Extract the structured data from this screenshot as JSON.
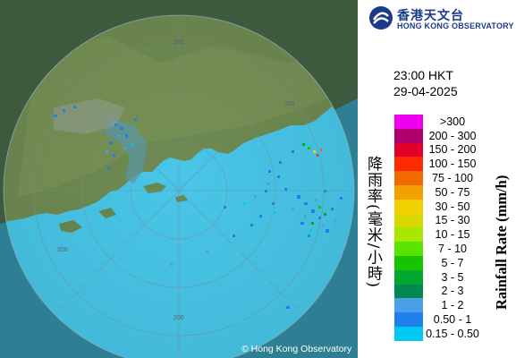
{
  "header": {
    "org_name_cn": "香港天文台",
    "org_name_en": "HONG KONG OBSERVATORY"
  },
  "observation": {
    "time": "23:00 HKT",
    "date": "29-04-2025"
  },
  "legend": {
    "title_cn": "降雨率(毫米/小時)",
    "title_en": "Rainfall Rate (mm/h)",
    "items": [
      {
        "label": ">300",
        "color": "#ee00ee"
      },
      {
        "label": "200 - 300",
        "color": "#b00070"
      },
      {
        "label": "150 - 200",
        "color": "#e0002a"
      },
      {
        "label": "100 - 150",
        "color": "#ff2a00"
      },
      {
        "label": "75 - 100",
        "color": "#f06a00"
      },
      {
        "label": "50 - 75",
        "color": "#f0a000"
      },
      {
        "label": "30 - 50",
        "color": "#f0d000"
      },
      {
        "label": "15 - 30",
        "color": "#d8d800"
      },
      {
        "label": "10 - 15",
        "color": "#a8e800"
      },
      {
        "label": "7 - 10",
        "color": "#58e400"
      },
      {
        "label": "5 - 7",
        "color": "#18c400"
      },
      {
        "label": "3 - 5",
        "color": "#00a830"
      },
      {
        "label": "2 - 3",
        "color": "#008850"
      },
      {
        "label": "1 - 2",
        "color": "#4aa0e8"
      },
      {
        "label": "0.50 - 1",
        "color": "#1e80e8"
      },
      {
        "label": "0.15 - 0.50",
        "color": "#00c8f0"
      }
    ]
  },
  "map": {
    "range_label": "200",
    "copyright": "© Hong Kong Observatory",
    "sea_color": "#48c6e8",
    "land_color": "#6f8a52"
  }
}
